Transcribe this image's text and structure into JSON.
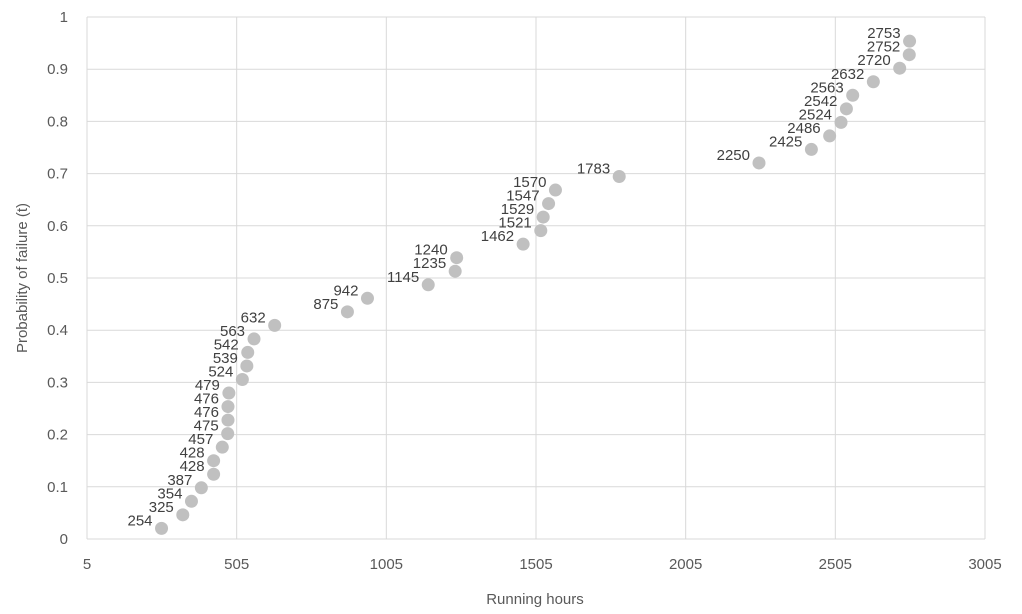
{
  "chart_data": {
    "type": "scatter",
    "xlabel": "Running hours",
    "ylabel": "Probability of failure (t)",
    "xlim": [
      5,
      3005
    ],
    "ylim": [
      0,
      1
    ],
    "x_ticks": [
      5,
      505,
      1005,
      1505,
      2005,
      2505,
      3005
    ],
    "y_ticks": [
      0,
      0.1,
      0.2,
      0.3,
      0.4,
      0.5,
      0.6,
      0.7,
      0.8,
      0.9,
      1
    ],
    "grid": true,
    "point_color": "#c0c0c0",
    "points": [
      {
        "x": 254,
        "y": 0.0204,
        "label": "254"
      },
      {
        "x": 325,
        "y": 0.0463,
        "label": "325"
      },
      {
        "x": 354,
        "y": 0.0722,
        "label": "354"
      },
      {
        "x": 387,
        "y": 0.0981,
        "label": "387"
      },
      {
        "x": 428,
        "y": 0.1241,
        "label": "428"
      },
      {
        "x": 428,
        "y": 0.15,
        "label": "428"
      },
      {
        "x": 457,
        "y": 0.1759,
        "label": "457"
      },
      {
        "x": 475,
        "y": 0.2019,
        "label": "475"
      },
      {
        "x": 476,
        "y": 0.2278,
        "label": "476"
      },
      {
        "x": 476,
        "y": 0.2537,
        "label": "476"
      },
      {
        "x": 479,
        "y": 0.2796,
        "label": "479"
      },
      {
        "x": 524,
        "y": 0.3056,
        "label": "524"
      },
      {
        "x": 539,
        "y": 0.3315,
        "label": "539"
      },
      {
        "x": 542,
        "y": 0.3574,
        "label": "542"
      },
      {
        "x": 563,
        "y": 0.3833,
        "label": "563"
      },
      {
        "x": 632,
        "y": 0.4093,
        "label": "632"
      },
      {
        "x": 875,
        "y": 0.4352,
        "label": "875"
      },
      {
        "x": 942,
        "y": 0.4611,
        "label": "942"
      },
      {
        "x": 1145,
        "y": 0.487,
        "label": "1145"
      },
      {
        "x": 1235,
        "y": 0.513,
        "label": "1235"
      },
      {
        "x": 1240,
        "y": 0.5389,
        "label": "1240"
      },
      {
        "x": 1462,
        "y": 0.5648,
        "label": "1462"
      },
      {
        "x": 1521,
        "y": 0.5907,
        "label": "1521"
      },
      {
        "x": 1529,
        "y": 0.6167,
        "label": "1529"
      },
      {
        "x": 1547,
        "y": 0.6426,
        "label": "1547"
      },
      {
        "x": 1570,
        "y": 0.6685,
        "label": "1570"
      },
      {
        "x": 1783,
        "y": 0.6944,
        "label": "1783"
      },
      {
        "x": 2250,
        "y": 0.7204,
        "label": "2250"
      },
      {
        "x": 2425,
        "y": 0.7463,
        "label": "2425"
      },
      {
        "x": 2486,
        "y": 0.7722,
        "label": "2486"
      },
      {
        "x": 2524,
        "y": 0.7981,
        "label": "2524"
      },
      {
        "x": 2542,
        "y": 0.8241,
        "label": "2542"
      },
      {
        "x": 2563,
        "y": 0.85,
        "label": "2563"
      },
      {
        "x": 2632,
        "y": 0.8759,
        "label": "2632"
      },
      {
        "x": 2720,
        "y": 0.9019,
        "label": "2720"
      },
      {
        "x": 2752,
        "y": 0.9278,
        "label": "2752"
      },
      {
        "x": 2753,
        "y": 0.9537,
        "label": "2753"
      }
    ]
  }
}
